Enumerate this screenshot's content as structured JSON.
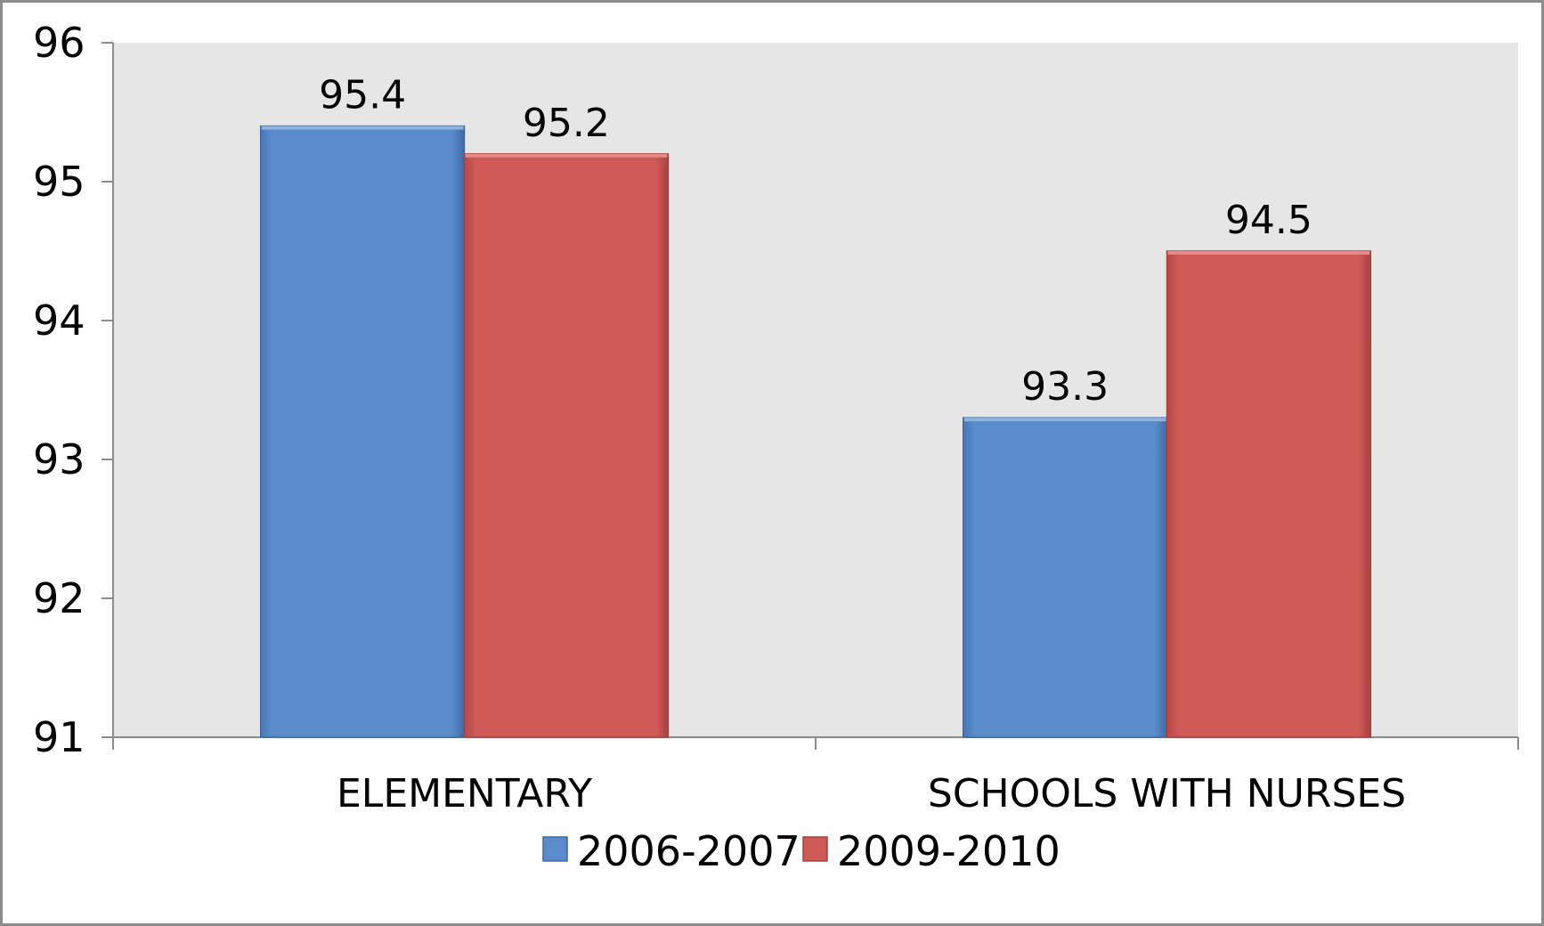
{
  "chart_data": {
    "type": "bar",
    "categories": [
      "ELEMENTARY",
      "SCHOOLS WITH NURSES"
    ],
    "series": [
      {
        "name": "2006-2007",
        "values": [
          95.4,
          93.3
        ],
        "color": "#5a8ccc"
      },
      {
        "name": "2009-2010",
        "values": [
          95.2,
          94.5
        ],
        "color": "#cf5a58"
      }
    ],
    "ylim": [
      91,
      96
    ],
    "yticks": [
      "91",
      "92",
      "93",
      "94",
      "95",
      "96"
    ],
    "data_labels": [
      [
        "95.4",
        "93.3"
      ],
      [
        "95.2",
        "94.5"
      ]
    ],
    "title": "",
    "xlabel": "",
    "ylabel": "",
    "legend_position": "bottom",
    "grid": false,
    "plot_background": "#e6e6e6"
  }
}
